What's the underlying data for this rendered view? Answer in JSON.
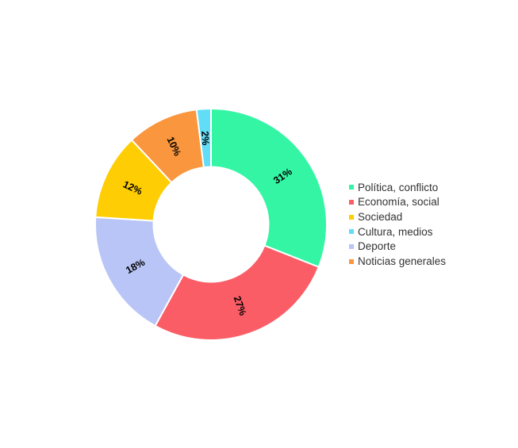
{
  "chart_data": {
    "type": "pie",
    "subtype": "donut",
    "title": "",
    "unit": "%",
    "background": "#ffffff",
    "label_style": "percent-inside-radial-rotated",
    "label_color": "#000000",
    "legend_position": "right",
    "legend_text_color": "#333333",
    "slice_order": "value-descending-clockwise-from-top",
    "start_angle_deg": 0,
    "series": [
      {
        "name": "Política, conflicto",
        "value": 31,
        "label": "31%",
        "color": "#34f5a4"
      },
      {
        "name": "Economía, social",
        "value": 27,
        "label": "27%",
        "color": "#fa5d66"
      },
      {
        "name": "Sociedad",
        "value": 12,
        "label": "12%",
        "color": "#fecd03"
      },
      {
        "name": "Cultura, medios",
        "value": 2,
        "label": "2%",
        "color": "#62ddf7"
      },
      {
        "name": "Deporte",
        "value": 18,
        "label": "18%",
        "color": "#b9c5f6"
      },
      {
        "name": "Noticias generales",
        "value": 10,
        "label": "10%",
        "color": "#fa963e"
      }
    ]
  }
}
